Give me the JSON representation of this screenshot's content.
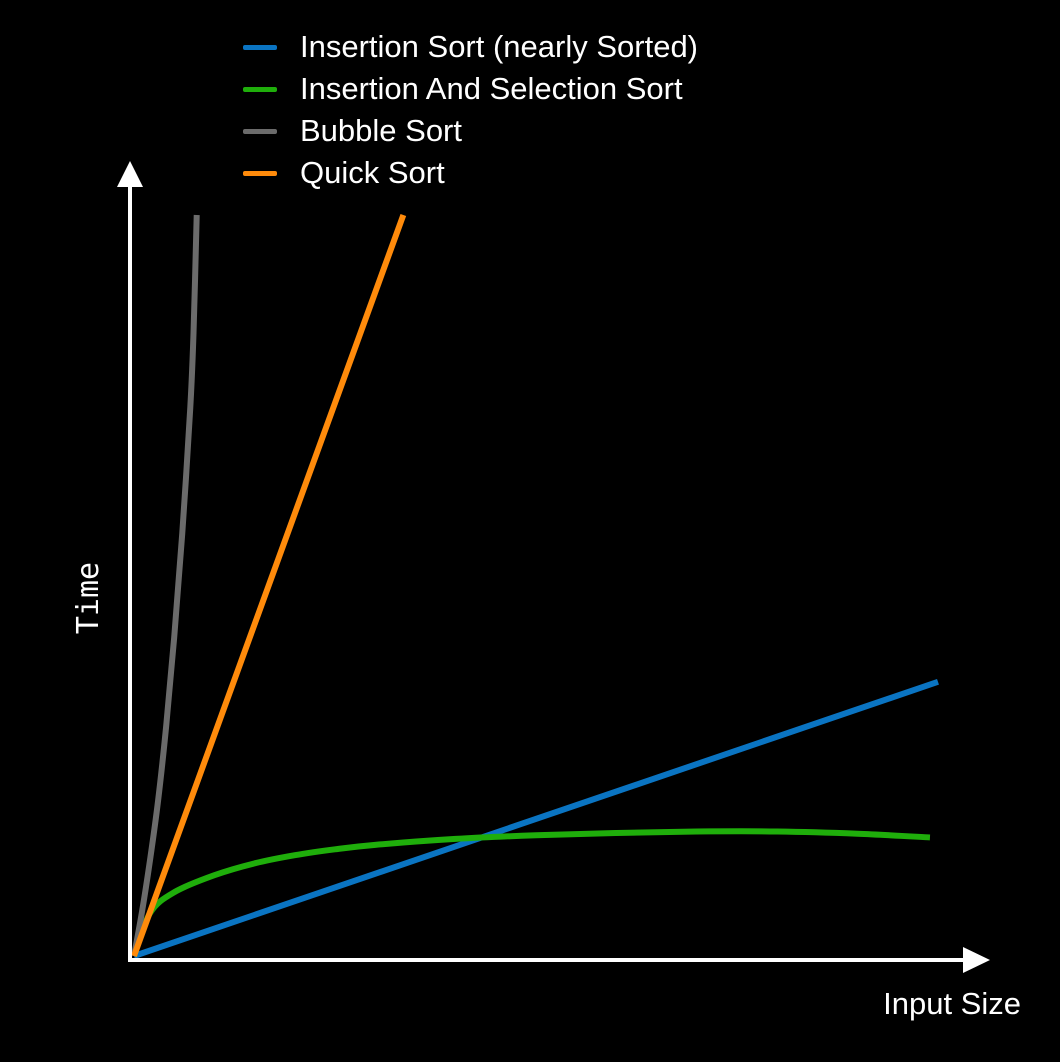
{
  "chart_data": {
    "type": "line",
    "title": "",
    "xlabel": "Input Size",
    "ylabel": "Time",
    "xlim": [
      0,
      100
    ],
    "ylim": [
      0,
      100
    ],
    "grid": false,
    "legend_position": "top",
    "series": [
      {
        "name": "Insertion Sort (nearly Sorted)",
        "color": "#0a74c2",
        "x": [
          0,
          100
        ],
        "y": [
          0,
          37
        ]
      },
      {
        "name": "Insertion And Selection Sort",
        "color": "#1fae0b",
        "x": [
          0,
          2,
          5,
          10,
          15,
          20,
          25,
          30,
          40,
          50,
          60,
          70,
          80,
          90,
          99
        ],
        "y": [
          0,
          5.8,
          8.6,
          10.9,
          12.5,
          13.6,
          14.4,
          15.0,
          15.8,
          16.3,
          16.6,
          16.8,
          16.8,
          16.5,
          16.0
        ]
      },
      {
        "name": "Bubble Sort",
        "color": "#6b6b6b",
        "x": [
          0,
          1,
          2,
          3,
          4,
          5,
          6,
          7,
          7.4,
          7.8
        ],
        "y": [
          0,
          6,
          13,
          21,
          31,
          43,
          57,
          74,
          84,
          100
        ]
      },
      {
        "name": "Quick Sort",
        "color": "#ff8b0b",
        "x": [
          0,
          33.5
        ],
        "y": [
          0,
          100
        ]
      }
    ]
  }
}
